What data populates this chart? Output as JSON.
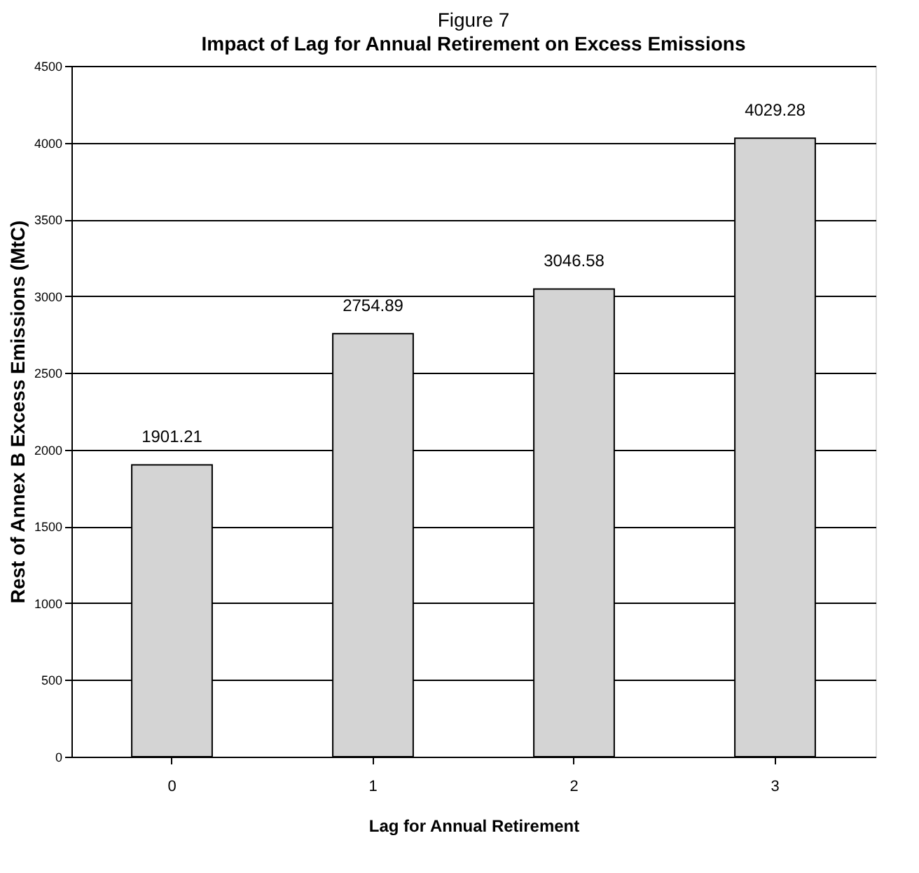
{
  "chart_data": {
    "type": "bar",
    "title": "Figure 7",
    "subtitle": "Impact of Lag for Annual Retirement on Excess Emissions",
    "xlabel": "Lag for Annual Retirement",
    "ylabel": "Rest of Annex B Excess Emissions (MtC)",
    "categories": [
      "0",
      "1",
      "2",
      "3"
    ],
    "values": [
      1901.21,
      2754.89,
      3046.58,
      4029.28
    ],
    "color": "#d4d4d4",
    "ylim": [
      0,
      4500
    ],
    "yticks": [
      0,
      500,
      1000,
      1500,
      2000,
      2500,
      3000,
      3500,
      4000,
      4500
    ],
    "grid": "y",
    "data_labels": true
  }
}
